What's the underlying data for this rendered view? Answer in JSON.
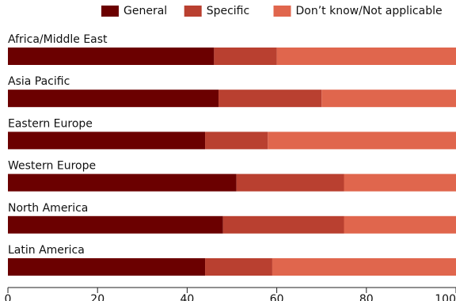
{
  "chart_data": {
    "type": "bar",
    "orientation": "horizontal",
    "stacked": true,
    "title": "",
    "xlabel": "",
    "ylabel": "",
    "xlim": [
      0,
      100
    ],
    "xticks": [
      0,
      20,
      40,
      60,
      80,
      100
    ],
    "legend_position": "top-right",
    "grid": false,
    "categories": [
      "Africa/Middle East",
      "Asia Pacific",
      "Eastern Europe",
      "Western Europe",
      "North America",
      "Latin America"
    ],
    "series": [
      {
        "name": "General",
        "color": "#6b0000",
        "values": [
          46,
          47,
          44,
          51,
          48,
          44
        ]
      },
      {
        "name": "Specific",
        "color": "#b94030",
        "values": [
          14,
          23,
          14,
          24,
          27,
          15
        ]
      },
      {
        "name": "Don’t know/Not applicable",
        "color": "#e0664d",
        "values": [
          40,
          30,
          42,
          25,
          25,
          41
        ]
      }
    ]
  }
}
